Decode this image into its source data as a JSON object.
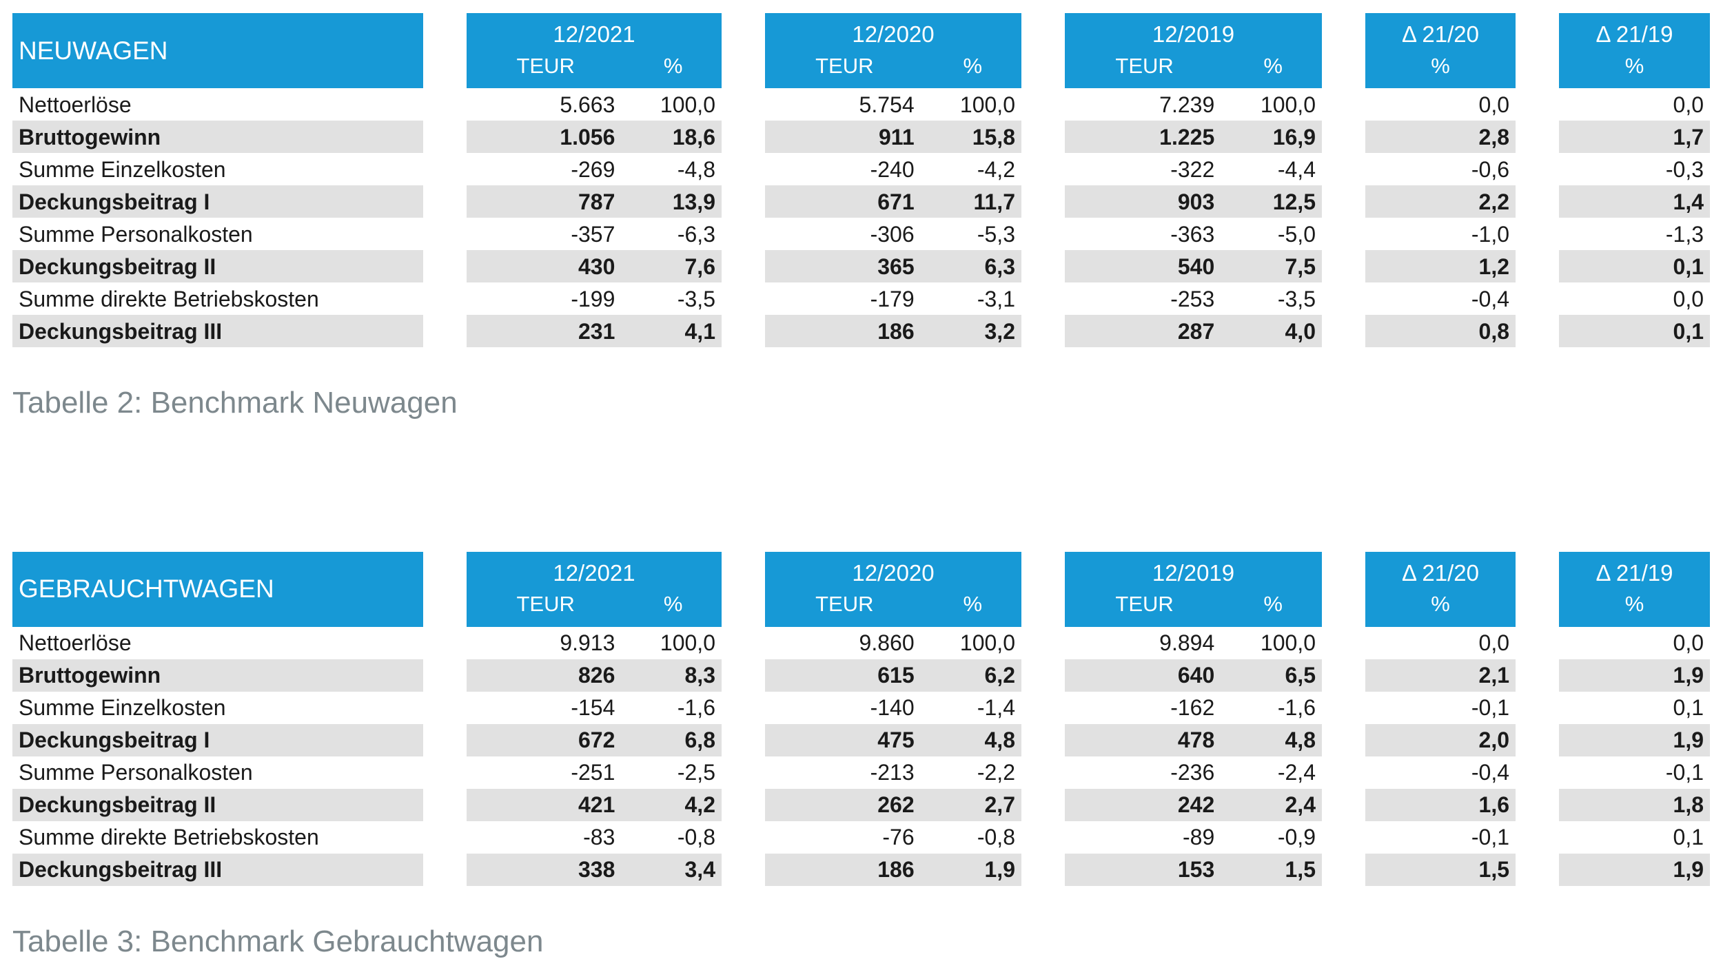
{
  "colors": {
    "header_blue": "#1799D6",
    "header_text": "#ffffff",
    "stripe_gray": "#E1E1E1",
    "caption_gray": "#7D888D",
    "text_black": "#1A1A1A"
  },
  "tables": [
    {
      "title": "NEUWAGEN",
      "caption": "Tabelle 2: Benchmark Neuwagen",
      "period_groups": [
        {
          "label": "12/2021",
          "unit": "TEUR",
          "percent": "%"
        },
        {
          "label": "12/2020",
          "unit": "TEUR",
          "percent": "%"
        },
        {
          "label": "12/2019",
          "unit": "TEUR",
          "percent": "%"
        }
      ],
      "delta_groups": [
        {
          "label": "Δ 21/20",
          "percent": "%"
        },
        {
          "label": "Δ 21/19",
          "percent": "%"
        }
      ],
      "rows": [
        {
          "label": "Nettoerlöse",
          "bold": false,
          "values": {
            "teur_2021": "5.663",
            "pct_2021": "100,0",
            "teur_2020": "5.754",
            "pct_2020": "100,0",
            "teur_2019": "7.239",
            "pct_2019": "100,0",
            "delta_21_20": "0,0",
            "delta_21_19": "0,0"
          }
        },
        {
          "label": "Bruttogewinn",
          "bold": true,
          "values": {
            "teur_2021": "1.056",
            "pct_2021": "18,6",
            "teur_2020": "911",
            "pct_2020": "15,8",
            "teur_2019": "1.225",
            "pct_2019": "16,9",
            "delta_21_20": "2,8",
            "delta_21_19": "1,7"
          }
        },
        {
          "label": "Summe Einzelkosten",
          "bold": false,
          "values": {
            "teur_2021": "-269",
            "pct_2021": "-4,8",
            "teur_2020": "-240",
            "pct_2020": "-4,2",
            "teur_2019": "-322",
            "pct_2019": "-4,4",
            "delta_21_20": "-0,6",
            "delta_21_19": "-0,3"
          }
        },
        {
          "label": "Deckungsbeitrag I",
          "bold": true,
          "values": {
            "teur_2021": "787",
            "pct_2021": "13,9",
            "teur_2020": "671",
            "pct_2020": "11,7",
            "teur_2019": "903",
            "pct_2019": "12,5",
            "delta_21_20": "2,2",
            "delta_21_19": "1,4"
          }
        },
        {
          "label": "Summe Personalkosten",
          "bold": false,
          "values": {
            "teur_2021": "-357",
            "pct_2021": "-6,3",
            "teur_2020": "-306",
            "pct_2020": "-5,3",
            "teur_2019": "-363",
            "pct_2019": "-5,0",
            "delta_21_20": "-1,0",
            "delta_21_19": "-1,3"
          }
        },
        {
          "label": "Deckungsbeitrag II",
          "bold": true,
          "values": {
            "teur_2021": "430",
            "pct_2021": "7,6",
            "teur_2020": "365",
            "pct_2020": "6,3",
            "teur_2019": "540",
            "pct_2019": "7,5",
            "delta_21_20": "1,2",
            "delta_21_19": "0,1"
          }
        },
        {
          "label": "Summe direkte Betriebskosten",
          "bold": false,
          "values": {
            "teur_2021": "-199",
            "pct_2021": "-3,5",
            "teur_2020": "-179",
            "pct_2020": "-3,1",
            "teur_2019": "-253",
            "pct_2019": "-3,5",
            "delta_21_20": "-0,4",
            "delta_21_19": "0,0"
          }
        },
        {
          "label": "Deckungsbeitrag III",
          "bold": true,
          "values": {
            "teur_2021": "231",
            "pct_2021": "4,1",
            "teur_2020": "186",
            "pct_2020": "3,2",
            "teur_2019": "287",
            "pct_2019": "4,0",
            "delta_21_20": "0,8",
            "delta_21_19": "0,1"
          }
        }
      ]
    },
    {
      "title": "GEBRAUCHTWAGEN",
      "caption": "Tabelle 3: Benchmark Gebrauchtwagen",
      "period_groups": [
        {
          "label": "12/2021",
          "unit": "TEUR",
          "percent": "%"
        },
        {
          "label": "12/2020",
          "unit": "TEUR",
          "percent": "%"
        },
        {
          "label": "12/2019",
          "unit": "TEUR",
          "percent": "%"
        }
      ],
      "delta_groups": [
        {
          "label": "Δ 21/20",
          "percent": "%"
        },
        {
          "label": "Δ 21/19",
          "percent": "%"
        }
      ],
      "rows": [
        {
          "label": "Nettoerlöse",
          "bold": false,
          "values": {
            "teur_2021": "9.913",
            "pct_2021": "100,0",
            "teur_2020": "9.860",
            "pct_2020": "100,0",
            "teur_2019": "9.894",
            "pct_2019": "100,0",
            "delta_21_20": "0,0",
            "delta_21_19": "0,0"
          }
        },
        {
          "label": "Bruttogewinn",
          "bold": true,
          "values": {
            "teur_2021": "826",
            "pct_2021": "8,3",
            "teur_2020": "615",
            "pct_2020": "6,2",
            "teur_2019": "640",
            "pct_2019": "6,5",
            "delta_21_20": "2,1",
            "delta_21_19": "1,9"
          }
        },
        {
          "label": "Summe Einzelkosten",
          "bold": false,
          "values": {
            "teur_2021": "-154",
            "pct_2021": "-1,6",
            "teur_2020": "-140",
            "pct_2020": "-1,4",
            "teur_2019": "-162",
            "pct_2019": "-1,6",
            "delta_21_20": "-0,1",
            "delta_21_19": "0,1"
          }
        },
        {
          "label": "Deckungsbeitrag I",
          "bold": true,
          "values": {
            "teur_2021": "672",
            "pct_2021": "6,8",
            "teur_2020": "475",
            "pct_2020": "4,8",
            "teur_2019": "478",
            "pct_2019": "4,8",
            "delta_21_20": "2,0",
            "delta_21_19": "1,9"
          }
        },
        {
          "label": "Summe Personalkosten",
          "bold": false,
          "values": {
            "teur_2021": "-251",
            "pct_2021": "-2,5",
            "teur_2020": "-213",
            "pct_2020": "-2,2",
            "teur_2019": "-236",
            "pct_2019": "-2,4",
            "delta_21_20": "-0,4",
            "delta_21_19": "-0,1"
          }
        },
        {
          "label": "Deckungsbeitrag II",
          "bold": true,
          "values": {
            "teur_2021": "421",
            "pct_2021": "4,2",
            "teur_2020": "262",
            "pct_2020": "2,7",
            "teur_2019": "242",
            "pct_2019": "2,4",
            "delta_21_20": "1,6",
            "delta_21_19": "1,8"
          }
        },
        {
          "label": "Summe direkte Betriebskosten",
          "bold": false,
          "values": {
            "teur_2021": "-83",
            "pct_2021": "-0,8",
            "teur_2020": "-76",
            "pct_2020": "-0,8",
            "teur_2019": "-89",
            "pct_2019": "-0,9",
            "delta_21_20": "-0,1",
            "delta_21_19": "0,1"
          }
        },
        {
          "label": "Deckungsbeitrag III",
          "bold": true,
          "values": {
            "teur_2021": "338",
            "pct_2021": "3,4",
            "teur_2020": "186",
            "pct_2020": "1,9",
            "teur_2019": "153",
            "pct_2019": "1,5",
            "delta_21_20": "1,5",
            "delta_21_19": "1,9"
          }
        }
      ]
    }
  ]
}
